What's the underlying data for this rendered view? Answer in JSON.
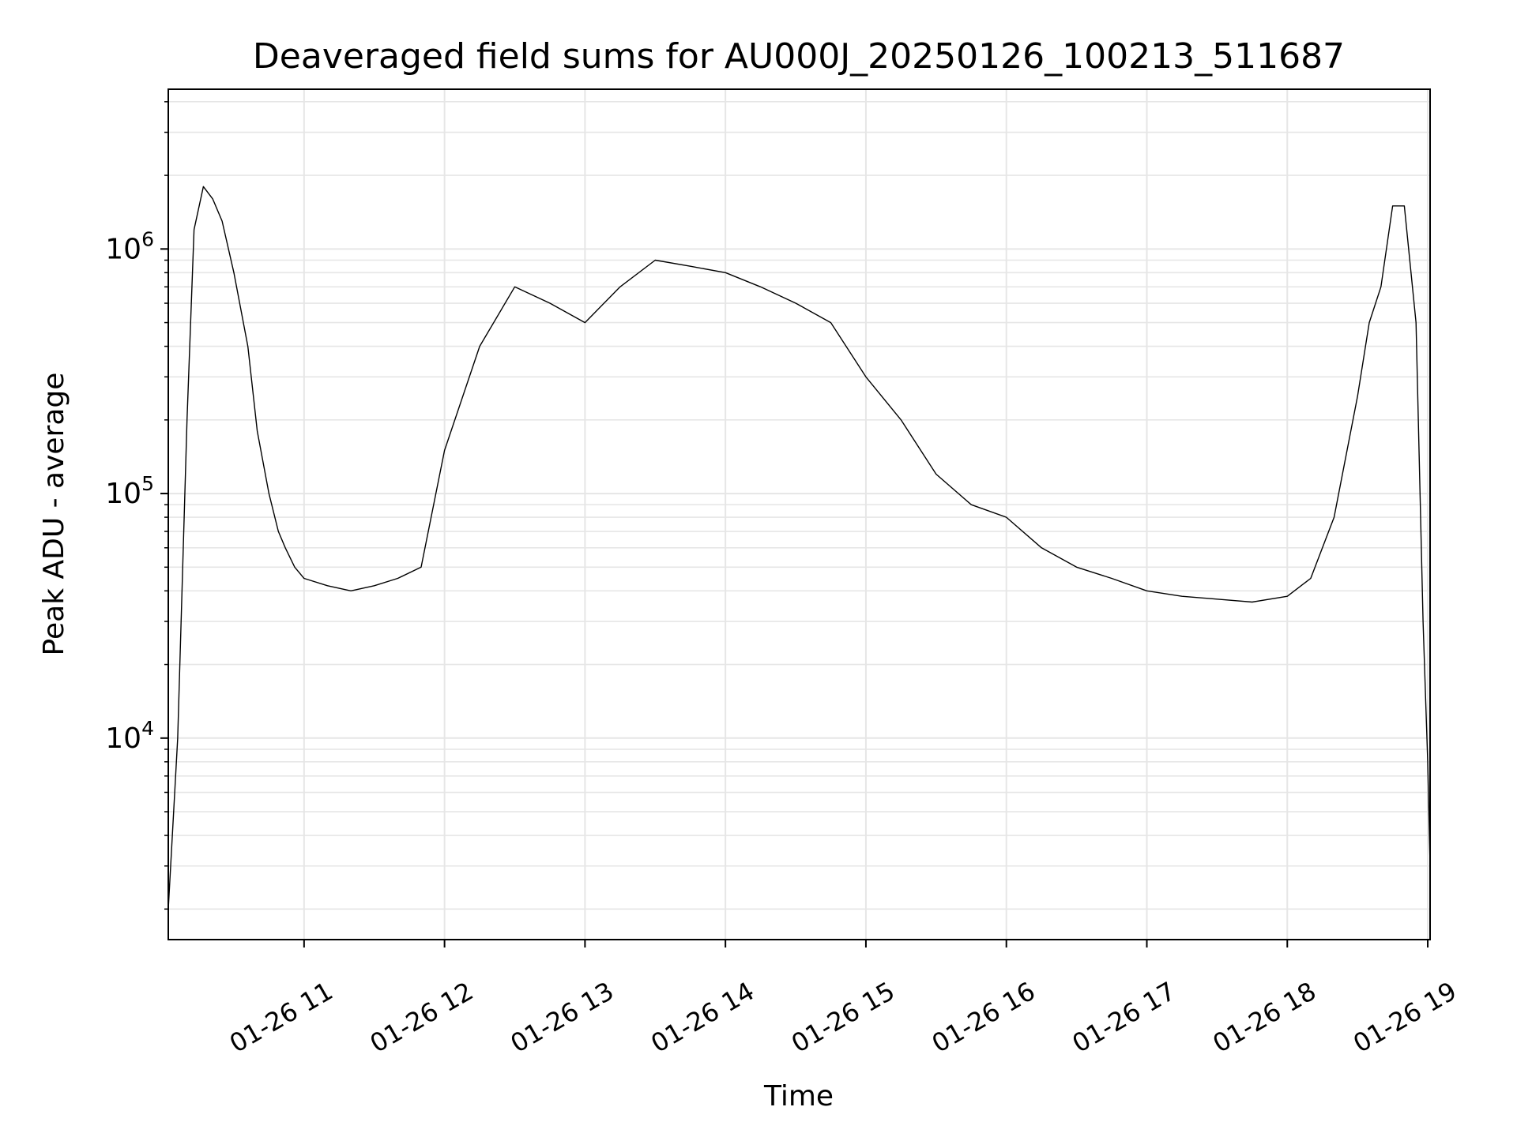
{
  "chart_data": {
    "type": "line",
    "title": "Deaveraged field sums for AU000J_20250126_100213_511687",
    "xlabel": "Time",
    "ylabel": "Peak ADU - average",
    "x_scale": "time",
    "y_scale": "log",
    "xlim": [
      "01-26 10:02",
      "01-26 19:01"
    ],
    "ylim": [
      1500,
      4500000
    ],
    "x_ticks": [
      "01-26 11",
      "01-26 12",
      "01-26 13",
      "01-26 14",
      "01-26 15",
      "01-26 16",
      "01-26 17",
      "01-26 18",
      "01-26 19"
    ],
    "y_ticks": [
      {
        "base": "10",
        "exp": "4",
        "value": 10000
      },
      {
        "base": "10",
        "exp": "5",
        "value": 100000
      },
      {
        "base": "10",
        "exp": "6",
        "value": 1000000
      }
    ],
    "grid": true,
    "legend": "none",
    "line_color": "#000000",
    "grid_color": "#e6e6e6",
    "series": [
      {
        "x": [
          "01-26 10:02",
          "01-26 10:06",
          "01-26 10:10",
          "01-26 10:13",
          "01-26 10:17",
          "01-26 10:21",
          "01-26 10:25",
          "01-26 10:30",
          "01-26 10:36",
          "01-26 10:40",
          "01-26 10:45",
          "01-26 10:49",
          "01-26 10:52",
          "01-26 10:56",
          "01-26 11:00",
          "01-26 11:10",
          "01-26 11:20",
          "01-26 11:30",
          "01-26 11:40",
          "01-26 11:50",
          "01-26 12:00",
          "01-26 12:15",
          "01-26 12:30",
          "01-26 12:45",
          "01-26 13:00",
          "01-26 13:15",
          "01-26 13:30",
          "01-26 13:45",
          "01-26 14:00",
          "01-26 14:15",
          "01-26 14:30",
          "01-26 14:45",
          "01-26 15:00",
          "01-26 15:15",
          "01-26 15:30",
          "01-26 15:45",
          "01-26 16:00",
          "01-26 16:15",
          "01-26 16:30",
          "01-26 16:45",
          "01-26 17:00",
          "01-26 17:15",
          "01-26 17:30",
          "01-26 17:45",
          "01-26 18:00",
          "01-26 18:10",
          "01-26 18:20",
          "01-26 18:30",
          "01-26 18:35",
          "01-26 18:40",
          "01-26 18:45",
          "01-26 18:50",
          "01-26 18:55",
          "01-26 18:58",
          "01-26 19:00",
          "01-26 19:01"
        ],
        "y": [
          2000,
          10000,
          200000,
          1200000,
          1800000,
          1600000,
          1300000,
          800000,
          400000,
          180000,
          100000,
          70000,
          60000,
          50000,
          45000,
          42000,
          40000,
          42000,
          45000,
          50000,
          150000,
          400000,
          700000,
          600000,
          500000,
          700000,
          900000,
          850000,
          800000,
          700000,
          600000,
          500000,
          300000,
          200000,
          120000,
          90000,
          80000,
          60000,
          50000,
          45000,
          40000,
          38000,
          37000,
          36000,
          38000,
          45000,
          80000,
          250000,
          500000,
          700000,
          1500000,
          1500000,
          500000,
          30000,
          8000,
          3000
        ]
      }
    ]
  }
}
